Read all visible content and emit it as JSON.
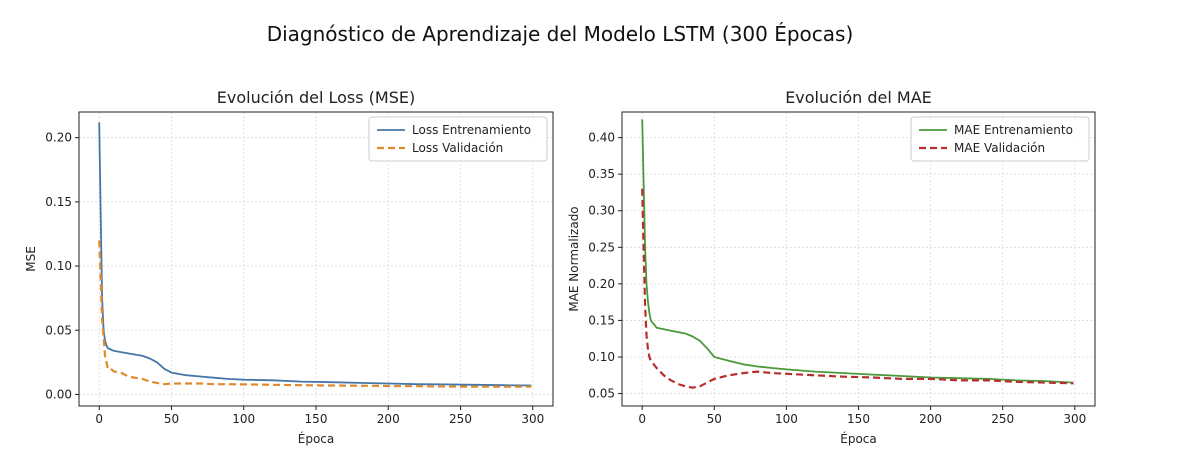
{
  "figure": {
    "title": "Diagnóstico de Aprendizaje del Modelo LSTM (300 Épocas)"
  },
  "chart_data": [
    {
      "type": "line",
      "title": "Evolución del Loss (MSE)",
      "xlabel": "Época",
      "ylabel": "MSE",
      "xlim": [
        -14,
        314
      ],
      "ylim": [
        -0.009,
        0.22
      ],
      "xticks": [
        0,
        50,
        100,
        150,
        200,
        250,
        300
      ],
      "yticks": [
        0.0,
        0.05,
        0.1,
        0.15,
        0.2
      ],
      "ytick_labels": [
        "0.00",
        "0.05",
        "0.10",
        "0.15",
        "0.20"
      ],
      "grid": true,
      "legend_position": "top-right",
      "series": [
        {
          "name": "Loss Entrenamiento",
          "color": "#4676a8",
          "style": "solid",
          "x": [
            0,
            1,
            2,
            3,
            4,
            5,
            6,
            8,
            10,
            15,
            20,
            25,
            30,
            35,
            40,
            45,
            50,
            60,
            70,
            80,
            90,
            100,
            120,
            140,
            160,
            180,
            200,
            220,
            240,
            260,
            280,
            299
          ],
          "y": [
            0.212,
            0.14,
            0.075,
            0.05,
            0.042,
            0.038,
            0.036,
            0.035,
            0.034,
            0.033,
            0.032,
            0.031,
            0.03,
            0.028,
            0.025,
            0.02,
            0.017,
            0.015,
            0.014,
            0.013,
            0.012,
            0.0115,
            0.011,
            0.01,
            0.0095,
            0.009,
            0.0085,
            0.008,
            0.0078,
            0.0075,
            0.0072,
            0.007
          ]
        },
        {
          "name": "Loss Validación",
          "color": "#e08a2c",
          "style": "dashed",
          "x": [
            0,
            1,
            2,
            3,
            4,
            5,
            6,
            8,
            10,
            15,
            20,
            25,
            30,
            35,
            40,
            45,
            50,
            60,
            70,
            80,
            90,
            100,
            120,
            140,
            160,
            180,
            200,
            220,
            240,
            260,
            280,
            299
          ],
          "y": [
            0.12,
            0.09,
            0.058,
            0.045,
            0.03,
            0.025,
            0.02,
            0.02,
            0.018,
            0.017,
            0.014,
            0.013,
            0.012,
            0.01,
            0.009,
            0.008,
            0.0085,
            0.0085,
            0.0085,
            0.008,
            0.008,
            0.0078,
            0.0075,
            0.0072,
            0.007,
            0.0068,
            0.0066,
            0.0064,
            0.0062,
            0.006,
            0.006,
            0.006
          ]
        }
      ]
    },
    {
      "type": "line",
      "title": "Evolución del MAE",
      "xlabel": "Época",
      "ylabel": "MAE Normalizado",
      "xlim": [
        -14,
        314
      ],
      "ylim": [
        0.033,
        0.435
      ],
      "xticks": [
        0,
        50,
        100,
        150,
        200,
        250,
        300
      ],
      "yticks": [
        0.05,
        0.1,
        0.15,
        0.2,
        0.25,
        0.3,
        0.35,
        0.4
      ],
      "ytick_labels": [
        "0.05",
        "0.10",
        "0.15",
        "0.20",
        "0.25",
        "0.30",
        "0.35",
        "0.40"
      ],
      "grid": true,
      "legend_position": "top-right",
      "series": [
        {
          "name": "MAE Entrenamiento",
          "color": "#4a9a3a",
          "style": "solid",
          "x": [
            0,
            1,
            2,
            3,
            4,
            5,
            6,
            8,
            10,
            15,
            20,
            25,
            30,
            35,
            40,
            45,
            50,
            60,
            70,
            80,
            90,
            100,
            120,
            140,
            160,
            180,
            200,
            220,
            240,
            260,
            280,
            299
          ],
          "y": [
            0.425,
            0.34,
            0.25,
            0.2,
            0.175,
            0.16,
            0.15,
            0.145,
            0.14,
            0.138,
            0.136,
            0.134,
            0.132,
            0.128,
            0.122,
            0.112,
            0.1,
            0.095,
            0.09,
            0.087,
            0.085,
            0.083,
            0.08,
            0.078,
            0.076,
            0.074,
            0.072,
            0.071,
            0.07,
            0.068,
            0.067,
            0.065
          ]
        },
        {
          "name": "MAE Validación",
          "color": "#b82e2e",
          "style": "dashed",
          "x": [
            0,
            1,
            2,
            3,
            4,
            5,
            6,
            8,
            10,
            15,
            20,
            25,
            30,
            35,
            40,
            45,
            50,
            60,
            70,
            80,
            90,
            100,
            120,
            140,
            160,
            180,
            200,
            220,
            240,
            260,
            280,
            299
          ],
          "y": [
            0.33,
            0.25,
            0.17,
            0.13,
            0.11,
            0.1,
            0.095,
            0.09,
            0.085,
            0.075,
            0.068,
            0.063,
            0.06,
            0.058,
            0.06,
            0.065,
            0.07,
            0.075,
            0.078,
            0.08,
            0.078,
            0.077,
            0.075,
            0.073,
            0.072,
            0.07,
            0.07,
            0.068,
            0.068,
            0.066,
            0.065,
            0.064
          ]
        }
      ]
    }
  ]
}
